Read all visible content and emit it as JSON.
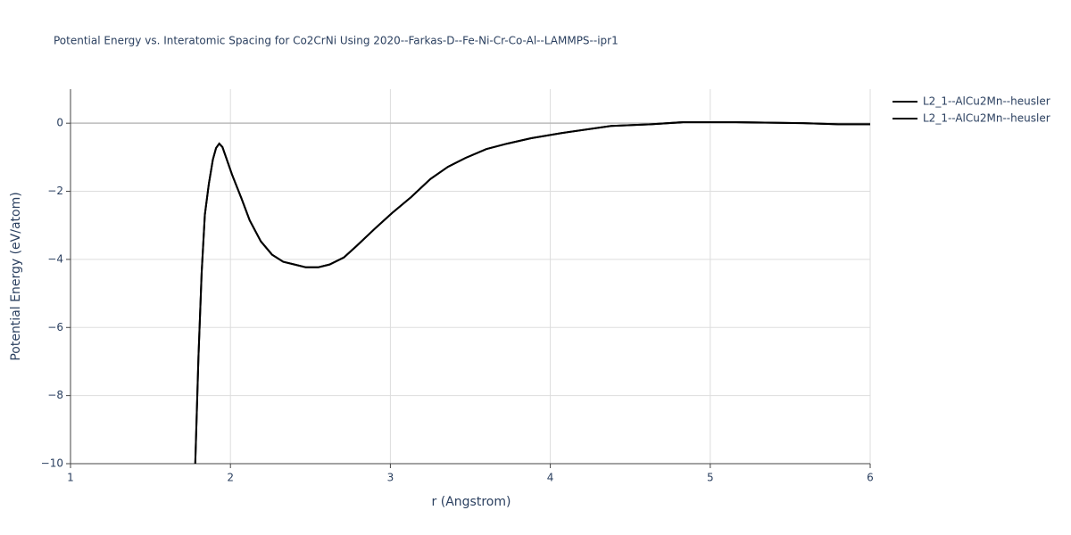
{
  "chart_data": {
    "type": "line",
    "title": "Potential Energy vs. Interatomic Spacing for Co2CrNi Using 2020--Farkas-D--Fe-Ni-Cr-Co-Al--LAMMPS--ipr1",
    "x_label": "r (Angstrom)",
    "y_label": "Potential Energy (eV/atom)",
    "xlim": [
      1,
      6
    ],
    "ylim": [
      -10,
      1
    ],
    "xticks": [
      1,
      2,
      3,
      4,
      5,
      6
    ],
    "yticks": [
      {
        "value": -10,
        "label": "−10"
      },
      {
        "value": -8,
        "label": "−8"
      },
      {
        "value": -6,
        "label": "−6"
      },
      {
        "value": -4,
        "label": "−4"
      },
      {
        "value": -2,
        "label": "−2"
      },
      0
    ],
    "grid": true,
    "legend": "right",
    "series": [
      {
        "name": "L2_1--AlCu2Mn--heusler",
        "color": "#000000",
        "x": [
          1.78,
          1.8,
          1.82,
          1.84,
          1.865,
          1.89,
          1.91,
          1.93,
          1.95,
          1.97,
          2.01,
          2.07,
          2.12,
          2.19,
          2.26,
          2.33,
          2.4,
          2.47,
          2.55,
          2.62,
          2.71,
          2.79,
          2.9,
          3.01,
          3.13,
          3.25,
          3.36,
          3.47,
          3.6,
          3.73,
          3.88,
          4.07,
          4.38,
          4.63,
          4.83,
          5.16,
          5.58,
          5.8,
          6.0
        ],
        "values": [
          -10,
          -6.87,
          -4.39,
          -2.69,
          -1.78,
          -1.07,
          -0.73,
          -0.6,
          -0.7,
          -0.97,
          -1.51,
          -2.22,
          -2.85,
          -3.47,
          -3.86,
          -4.07,
          -4.15,
          -4.23,
          -4.23,
          -4.15,
          -3.94,
          -3.6,
          -3.11,
          -2.64,
          -2.17,
          -1.64,
          -1.28,
          -1.02,
          -0.76,
          -0.6,
          -0.44,
          -0.29,
          -0.08,
          -0.03,
          0.03,
          0.03,
          0,
          -0.03,
          -0.03
        ]
      },
      {
        "name": "L2_1--AlCu2Mn--heusler",
        "color": "#000000",
        "x": [
          1.78,
          1.8,
          1.82,
          1.84,
          1.865,
          1.89,
          1.91,
          1.93,
          1.95,
          1.97,
          2.01,
          2.07,
          2.12,
          2.19,
          2.26,
          2.33,
          2.4,
          2.47,
          2.55,
          2.62,
          2.71,
          2.79,
          2.9,
          3.01,
          3.13,
          3.25,
          3.36,
          3.47,
          3.6,
          3.73,
          3.88,
          4.07,
          4.38,
          4.63,
          4.83,
          5.16,
          5.58,
          5.8,
          6.0
        ],
        "values": [
          -10,
          -6.87,
          -4.39,
          -2.69,
          -1.78,
          -1.07,
          -0.73,
          -0.6,
          -0.7,
          -0.97,
          -1.51,
          -2.22,
          -2.85,
          -3.47,
          -3.86,
          -4.07,
          -4.15,
          -4.23,
          -4.23,
          -4.15,
          -3.94,
          -3.6,
          -3.11,
          -2.64,
          -2.17,
          -1.64,
          -1.28,
          -1.02,
          -0.76,
          -0.6,
          -0.44,
          -0.29,
          -0.08,
          -0.03,
          0.03,
          0.03,
          0,
          -0.03,
          -0.03
        ]
      }
    ]
  }
}
